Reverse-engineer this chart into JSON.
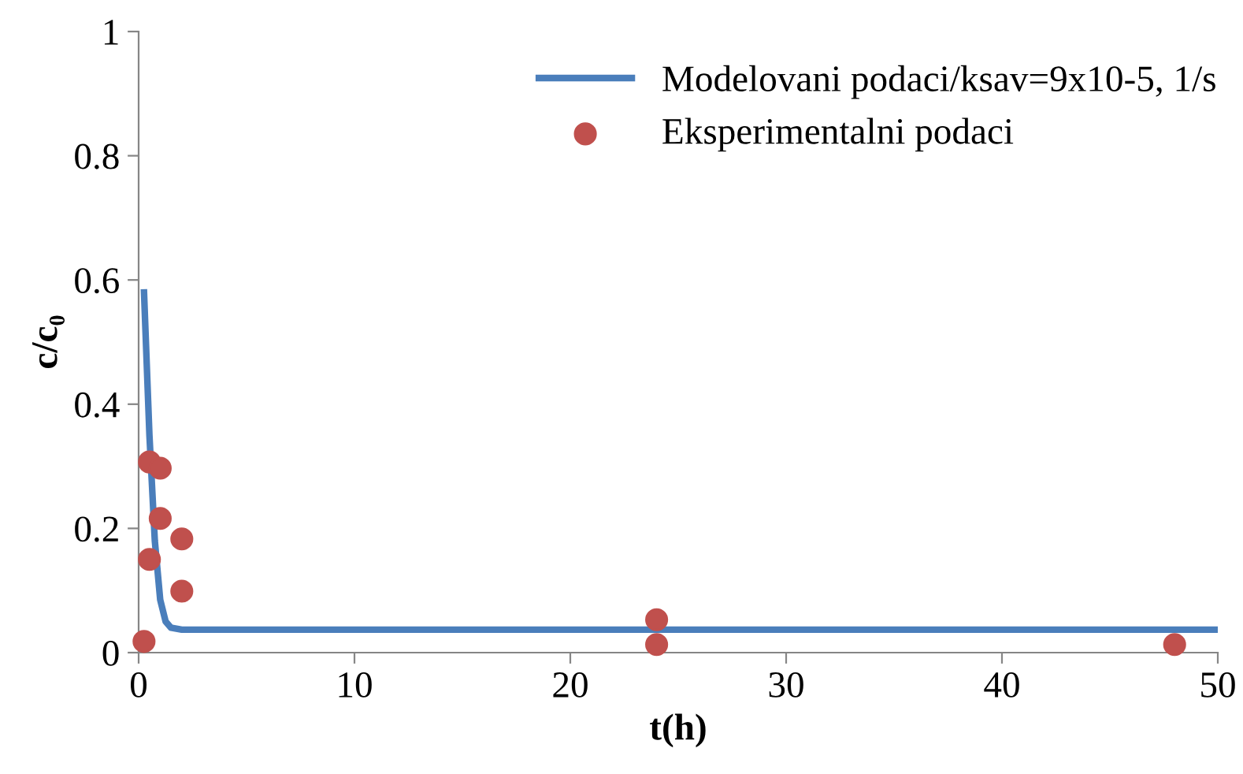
{
  "chart_data": {
    "type": "line",
    "xlabel": "t(h)",
    "ylabel": "c/c₀",
    "xlim": [
      0,
      50
    ],
    "ylim": [
      0,
      1
    ],
    "xticks": [
      0,
      10,
      20,
      30,
      40,
      50
    ],
    "yticks": [
      0,
      0.2,
      0.4,
      0.6,
      0.8,
      1
    ],
    "grid": false,
    "legend": "top right",
    "series": [
      {
        "name": "Modelovani podaci/ksav=9x10-5, 1/s",
        "color": "#4a7ebb",
        "marker": "none",
        "line_style": "solid",
        "x": [
          0.25,
          0.5,
          0.75,
          1,
          1.25,
          1.5,
          2,
          50
        ],
        "values": [
          0.58,
          0.35,
          0.18,
          0.085,
          0.05,
          0.04,
          0.037,
          0.037
        ]
      },
      {
        "name": "Eksperimentalni podaci",
        "type": "scatter",
        "color": "#c0504d",
        "marker": "circle",
        "x": [
          0.25,
          0.5,
          1,
          1,
          0.5,
          2,
          2,
          24,
          24,
          48
        ],
        "values": [
          0.018,
          0.307,
          0.297,
          0.216,
          0.15,
          0.183,
          0.099,
          0.053,
          0.013,
          0.013
        ]
      }
    ]
  }
}
